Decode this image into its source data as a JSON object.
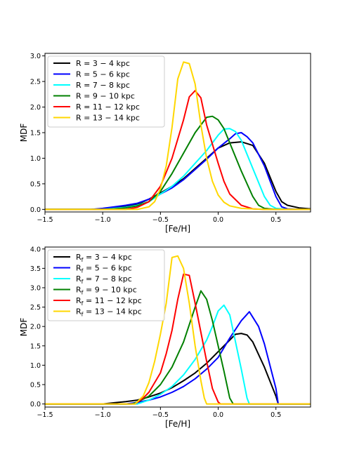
{
  "chart_data": [
    {
      "type": "line",
      "xlabel": "[Fe/H]",
      "ylabel": "MDF",
      "xlim": [
        -1.5,
        0.8
      ],
      "ylim": [
        -0.05,
        3.05
      ],
      "xticks": [
        "-1.5",
        "-1.0",
        "-0.5",
        "0.0",
        "0.5"
      ],
      "yticks": [
        "0.0",
        "0.5",
        "1.0",
        "1.5",
        "2.0",
        "2.5",
        "3.0"
      ],
      "grid": false,
      "legend": "top-left",
      "series": [
        {
          "name": "R = 3 − 4 kpc",
          "color": "#000000",
          "x": [
            -1.5,
            -1.1,
            -1.0,
            -0.9,
            -0.8,
            -0.7,
            -0.6,
            -0.5,
            -0.4,
            -0.3,
            -0.2,
            -0.1,
            0.0,
            0.1,
            0.2,
            0.3,
            0.4,
            0.5,
            0.55,
            0.6,
            0.7,
            0.8
          ],
          "y": [
            0,
            0,
            0.01,
            0.03,
            0.06,
            0.1,
            0.2,
            0.32,
            0.45,
            0.6,
            0.8,
            1.0,
            1.2,
            1.3,
            1.32,
            1.25,
            0.9,
            0.35,
            0.15,
            0.08,
            0.03,
            0.01
          ]
        },
        {
          "name": "R = 5 − 6 kpc",
          "color": "#0000ff",
          "x": [
            -1.5,
            -1.1,
            -1.0,
            -0.9,
            -0.8,
            -0.7,
            -0.6,
            -0.5,
            -0.4,
            -0.3,
            -0.2,
            -0.1,
            0.0,
            0.1,
            0.15,
            0.2,
            0.25,
            0.3,
            0.4,
            0.5,
            0.55,
            0.6,
            0.7,
            0.8
          ],
          "y": [
            0,
            0,
            0.02,
            0.05,
            0.08,
            0.12,
            0.2,
            0.3,
            0.42,
            0.58,
            0.78,
            0.98,
            1.2,
            1.38,
            1.48,
            1.5,
            1.42,
            1.3,
            0.85,
            0.25,
            0.05,
            0.01,
            0,
            0
          ]
        },
        {
          "name": "R = 7 − 8 kpc",
          "color": "#00ffff",
          "x": [
            -1.5,
            -1.0,
            -0.9,
            -0.8,
            -0.7,
            -0.6,
            -0.5,
            -0.4,
            -0.3,
            -0.2,
            -0.1,
            0.0,
            0.05,
            0.1,
            0.15,
            0.2,
            0.3,
            0.4,
            0.45,
            0.5,
            0.6,
            0.8
          ],
          "y": [
            0,
            0,
            0.02,
            0.04,
            0.08,
            0.15,
            0.3,
            0.45,
            0.65,
            0.9,
            1.15,
            1.45,
            1.57,
            1.58,
            1.52,
            1.35,
            0.8,
            0.25,
            0.08,
            0.02,
            0,
            0
          ]
        },
        {
          "name": "R = 9 − 10 kpc",
          "color": "#008000",
          "x": [
            -1.5,
            -1.0,
            -0.9,
            -0.8,
            -0.7,
            -0.6,
            -0.5,
            -0.4,
            -0.3,
            -0.2,
            -0.1,
            -0.05,
            0.0,
            0.05,
            0.1,
            0.2,
            0.3,
            0.35,
            0.4,
            0.5,
            0.8
          ],
          "y": [
            0,
            0,
            0.01,
            0.03,
            0.07,
            0.15,
            0.35,
            0.7,
            1.1,
            1.5,
            1.8,
            1.82,
            1.75,
            1.58,
            1.3,
            0.75,
            0.25,
            0.08,
            0.02,
            0,
            0
          ]
        },
        {
          "name": "R = 11 − 12 kpc",
          "color": "#ff0000",
          "x": [
            -1.5,
            -0.8,
            -0.7,
            -0.6,
            -0.5,
            -0.4,
            -0.3,
            -0.25,
            -0.2,
            -0.15,
            -0.1,
            0.0,
            0.05,
            0.1,
            0.2,
            0.3,
            0.4,
            0.8
          ],
          "y": [
            0,
            0,
            0.04,
            0.15,
            0.45,
            1.0,
            1.75,
            2.2,
            2.32,
            2.18,
            1.65,
            0.9,
            0.55,
            0.3,
            0.08,
            0.01,
            0,
            0
          ]
        },
        {
          "name": "R = 13 − 14 kpc",
          "color": "#ffd700",
          "x": [
            -1.5,
            -0.7,
            -0.6,
            -0.55,
            -0.5,
            -0.45,
            -0.4,
            -0.35,
            -0.3,
            -0.25,
            -0.2,
            -0.15,
            -0.1,
            -0.05,
            0.0,
            0.05,
            0.1,
            0.2,
            0.3,
            0.4,
            0.8
          ],
          "y": [
            0,
            0,
            0.05,
            0.15,
            0.4,
            0.85,
            1.6,
            2.55,
            2.88,
            2.85,
            2.45,
            1.65,
            1.0,
            0.55,
            0.28,
            0.14,
            0.07,
            0.02,
            0.01,
            0,
            0
          ]
        }
      ]
    },
    {
      "type": "line",
      "xlabel": "[Fe/H]",
      "ylabel": "MDF",
      "xlim": [
        -1.5,
        0.8
      ],
      "ylim": [
        -0.08,
        4.05
      ],
      "xticks": [
        "-1.5",
        "-1.0",
        "-0.5",
        "0.0",
        "0.5"
      ],
      "yticks": [
        "0.0",
        "0.5",
        "1.0",
        "1.5",
        "2.0",
        "2.5",
        "3.0",
        "3.5",
        "4.0"
      ],
      "grid": false,
      "legend": "top-left",
      "series": [
        {
          "name": "Rf = 3 − 4 kpc",
          "color": "#000000",
          "x": [
            -1.5,
            -1.0,
            -0.9,
            -0.8,
            -0.7,
            -0.6,
            -0.5,
            -0.4,
            -0.3,
            -0.2,
            -0.1,
            0.0,
            0.1,
            0.15,
            0.2,
            0.25,
            0.3,
            0.4,
            0.5,
            0.52,
            0.8
          ],
          "y": [
            0,
            0,
            0.03,
            0.06,
            0.1,
            0.18,
            0.28,
            0.42,
            0.6,
            0.8,
            1.05,
            1.35,
            1.65,
            1.8,
            1.82,
            1.78,
            1.6,
            0.95,
            0.2,
            0,
            0
          ]
        },
        {
          "name": "Rf = 5 − 6 kpc",
          "color": "#0000ff",
          "x": [
            -1.5,
            -0.8,
            -0.7,
            -0.6,
            -0.5,
            -0.4,
            -0.3,
            -0.2,
            -0.1,
            0.0,
            0.05,
            0.1,
            0.2,
            0.27,
            0.35,
            0.4,
            0.5,
            0.52,
            0.8
          ],
          "y": [
            0,
            0,
            0.04,
            0.1,
            0.18,
            0.3,
            0.45,
            0.65,
            0.9,
            1.2,
            1.45,
            1.7,
            2.15,
            2.38,
            2.0,
            1.55,
            0.4,
            0,
            0
          ]
        },
        {
          "name": "Rf = 7 − 8 kpc",
          "color": "#00ffff",
          "x": [
            -1.5,
            -0.7,
            -0.6,
            -0.5,
            -0.4,
            -0.3,
            -0.2,
            -0.1,
            -0.05,
            0.0,
            0.05,
            0.1,
            0.15,
            0.2,
            0.25,
            0.27,
            0.8
          ],
          "y": [
            0,
            0,
            0.1,
            0.25,
            0.45,
            0.75,
            1.15,
            1.65,
            2.0,
            2.4,
            2.55,
            2.3,
            1.6,
            0.9,
            0.15,
            0,
            0
          ]
        },
        {
          "name": "Rf = 9 − 10 kpc",
          "color": "#008000",
          "x": [
            -1.5,
            -0.75,
            -0.7,
            -0.6,
            -0.5,
            -0.4,
            -0.3,
            -0.2,
            -0.15,
            -0.1,
            -0.05,
            0.0,
            0.05,
            0.1,
            0.13,
            0.8
          ],
          "y": [
            0,
            0,
            0.05,
            0.2,
            0.5,
            0.95,
            1.6,
            2.5,
            2.92,
            2.7,
            2.15,
            1.5,
            0.85,
            0.15,
            0,
            0
          ]
        },
        {
          "name": "Rf = 11 − 12 kpc",
          "color": "#ff0000",
          "x": [
            -1.5,
            -0.72,
            -0.65,
            -0.6,
            -0.5,
            -0.45,
            -0.4,
            -0.35,
            -0.3,
            -0.25,
            -0.2,
            -0.15,
            -0.1,
            -0.05,
            0.0,
            0.02,
            0.8
          ],
          "y": [
            0,
            0,
            0.15,
            0.3,
            0.8,
            1.3,
            1.9,
            2.7,
            3.35,
            3.32,
            2.6,
            1.85,
            1.1,
            0.4,
            0.05,
            0,
            0
          ]
        },
        {
          "name": "Rf = 13 − 14 kpc",
          "color": "#ffd700",
          "x": [
            -1.5,
            -0.72,
            -0.65,
            -0.6,
            -0.55,
            -0.5,
            -0.45,
            -0.4,
            -0.35,
            -0.3,
            -0.25,
            -0.2,
            -0.15,
            -0.12,
            -0.1,
            0.8
          ],
          "y": [
            0,
            0,
            0.2,
            0.55,
            1.1,
            1.8,
            2.6,
            3.78,
            3.82,
            3.5,
            2.6,
            1.5,
            0.6,
            0.15,
            0,
            0
          ]
        }
      ]
    }
  ]
}
